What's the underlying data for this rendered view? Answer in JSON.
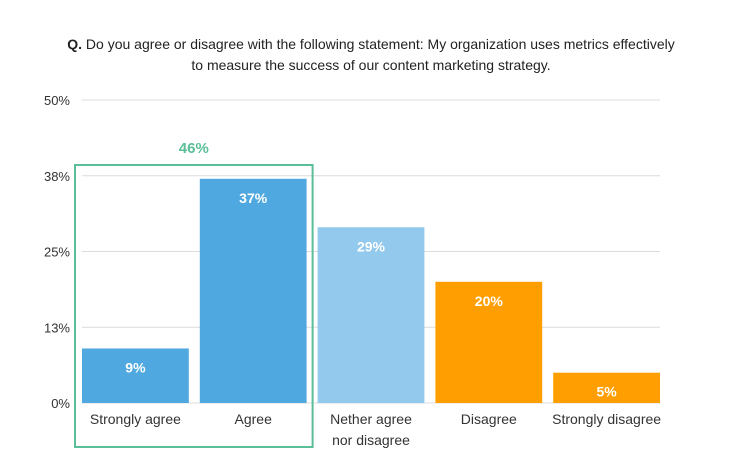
{
  "chart_data": {
    "type": "bar",
    "title_prefix": "Q.",
    "title_line1": "Do you agree or disagree with the following statement: My organization uses metrics effectively",
    "title_line2": "to measure the success of our content marketing strategy.",
    "categories": [
      [
        "Strongly agree"
      ],
      [
        "Agree"
      ],
      [
        "Nether agree",
        "nor disagree"
      ],
      [
        "Disagree"
      ],
      [
        "Strongly disagree"
      ]
    ],
    "values": [
      9,
      37,
      29,
      20,
      5
    ],
    "value_labels": [
      "9%",
      "37%",
      "29%",
      "20%",
      "5%"
    ],
    "colors": [
      "#4fa8e0",
      "#4fa8e0",
      "#93c9ec",
      "#ff9e00",
      "#ff9e00"
    ],
    "ylim": [
      0,
      50
    ],
    "yticks": [
      0,
      12.5,
      25,
      37.5,
      50
    ],
    "ytick_labels": [
      "0%",
      "13%",
      "25%",
      "38%",
      "50%"
    ],
    "grid": true,
    "group_annotation": {
      "label": "46%",
      "categories": [
        0,
        1
      ],
      "color": "#5abf98"
    }
  }
}
